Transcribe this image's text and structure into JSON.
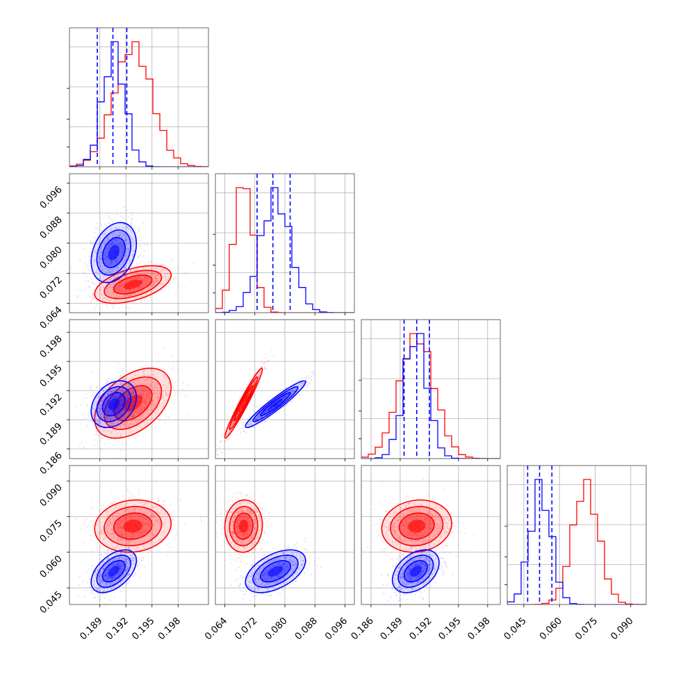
{
  "chart_data": {
    "type": "corner",
    "grid": true,
    "parameters": [
      {
        "range": [
          0.1855,
          0.2015
        ],
        "ticks": [
          0.189,
          0.192,
          0.195,
          0.198
        ],
        "tick_labels": [
          "0.189",
          "0.192",
          "0.195",
          "0.198"
        ]
      },
      {
        "range": [
          0.0615,
          0.0985
        ],
        "ticks": [
          0.064,
          0.072,
          0.08,
          0.088,
          0.096
        ],
        "tick_labels": [
          "0.064",
          "0.072",
          "0.080",
          "0.088",
          "0.096"
        ]
      },
      {
        "range": [
          0.185,
          0.1993
        ],
        "ticks": [
          0.186,
          0.189,
          0.192,
          0.195,
          0.198
        ],
        "tick_labels": [
          "0.186",
          "0.189",
          "0.192",
          "0.195",
          "0.198"
        ]
      },
      {
        "range": [
          0.038,
          0.0965
        ],
        "ticks": [
          0.045,
          0.06,
          0.075,
          0.09
        ],
        "tick_labels": [
          "0.045",
          "0.060",
          "0.075",
          "0.090"
        ]
      }
    ],
    "series": [
      {
        "color": "#ff0000",
        "means": [
          0.1928,
          0.069,
          0.1907,
          0.071
        ],
        "sds": [
          0.0022,
          0.0025,
          0.0018,
          0.0055
        ],
        "correlations": [
          [
            1,
            2,
            0.97
          ],
          [
            1,
            0,
            0.5
          ],
          [
            2,
            0,
            0.45
          ],
          [
            3,
            0,
            0.1
          ],
          [
            3,
            1,
            0.05
          ],
          [
            3,
            2,
            0.1
          ]
        ]
      },
      {
        "color": "#0000ff",
        "means": [
          0.1906,
          0.0775,
          0.1906,
          0.052
        ],
        "sds": [
          0.0013,
          0.004,
          0.0012,
          0.0045
        ],
        "correlations": [
          [
            1,
            2,
            0.95
          ],
          [
            1,
            0,
            0.3
          ],
          [
            2,
            0,
            0.3
          ],
          [
            3,
            0,
            0.5
          ],
          [
            3,
            1,
            0.5
          ],
          [
            3,
            2,
            0.4
          ]
        ]
      }
    ],
    "quantile_lines": [
      {
        "color": "#0000ff",
        "values": [
          0.1887,
          0.1905,
          0.1921
        ]
      },
      {
        "color": "#0000ff",
        "values": [
          0.0726,
          0.0768,
          0.0814
        ]
      },
      {
        "color": "#0000ff",
        "values": [
          0.1894,
          0.1907,
          0.192
        ]
      },
      {
        "color": "#0000ff",
        "values": [
          0.0466,
          0.0516,
          0.0568
        ]
      }
    ]
  }
}
